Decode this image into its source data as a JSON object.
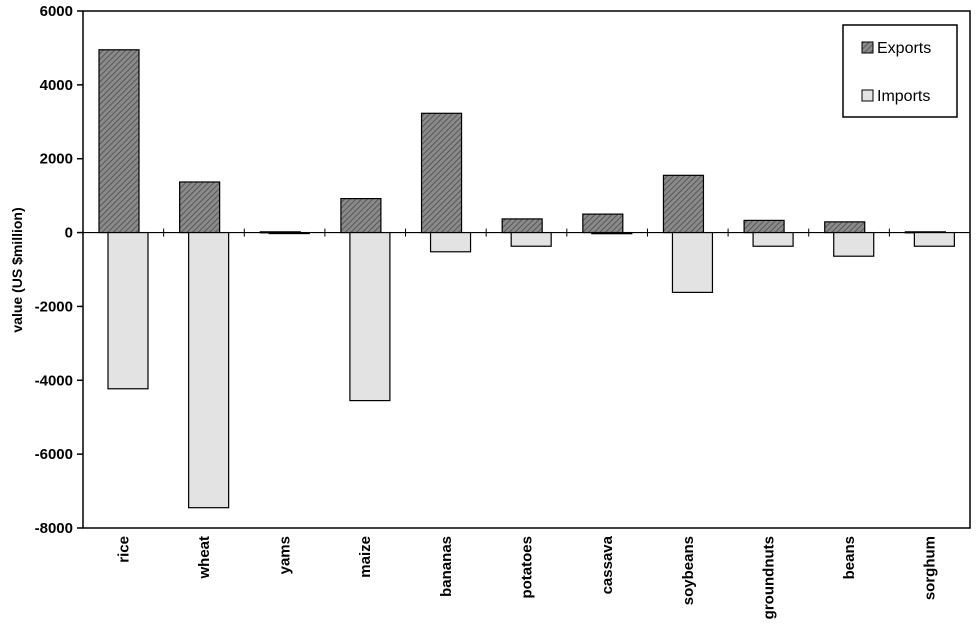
{
  "chart_data": {
    "type": "bar",
    "ylabel": "value (US $million)",
    "ylim": [
      -8000,
      6000
    ],
    "yticks": [
      6000,
      4000,
      2000,
      0,
      -2000,
      -4000,
      -6000,
      -8000
    ],
    "ytick_labels": [
      "6000",
      "4000",
      "2000",
      "0",
      "-2000",
      "-4000",
      "-6000",
      "-8000"
    ],
    "categories": [
      "rice",
      "wheat",
      "yams",
      "maize",
      "bananas",
      "potatoes",
      "cassava",
      "soybeans",
      "groundnuts",
      "beans",
      "sorghum"
    ],
    "series": [
      {
        "name": "Exports",
        "values": [
          4950,
          1370,
          20,
          920,
          3230,
          370,
          500,
          1550,
          330,
          290,
          20
        ]
      },
      {
        "name": "Imports",
        "values": [
          -4230,
          -7450,
          -20,
          -4550,
          -520,
          -370,
          -30,
          -1620,
          -370,
          -640,
          -370
        ]
      }
    ],
    "legend_position": "top-right",
    "grid": false
  },
  "colors": {
    "exports_fill": "#8a8a8a",
    "imports_fill": "#e3e3e3",
    "stroke": "#000000"
  }
}
